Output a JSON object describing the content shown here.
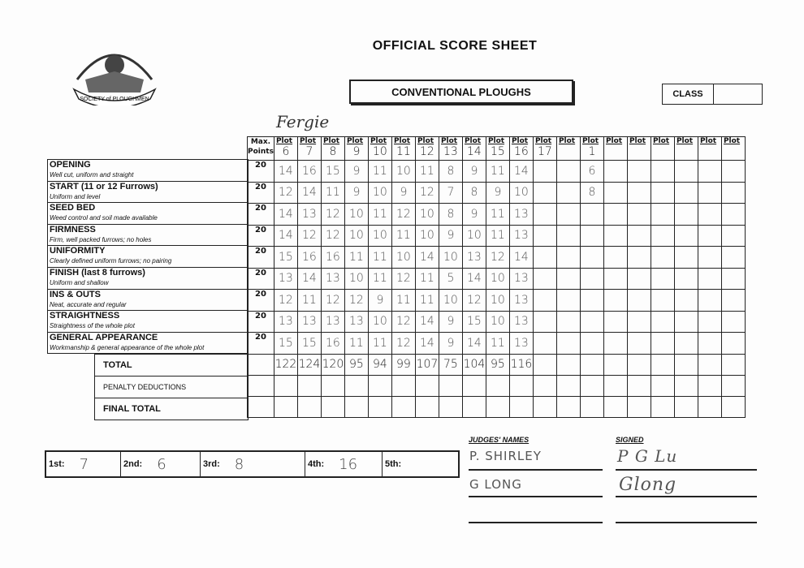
{
  "header": {
    "title": "OFFICIAL SCORE SHEET",
    "category": "CONVENTIONAL PLOUGHS",
    "class_label": "CLASS",
    "class_value": "",
    "logo_text": "SOCIETY of PLOUGHMEN"
  },
  "annotation": "Fergie",
  "grid": {
    "max_header": "Max. Points",
    "plot_label": "Plot",
    "plots": [
      "6",
      "7",
      "8",
      "9",
      "10",
      "11",
      "12",
      "13",
      "14",
      "15",
      "16",
      "17",
      "",
      "1",
      "",
      "",
      "",
      "",
      "",
      ""
    ],
    "criteria": [
      {
        "name": "OPENING",
        "desc": "Well cut, uniform and straight",
        "max": "20",
        "scores": [
          "14",
          "16",
          "15",
          "9",
          "11",
          "10",
          "11",
          "8",
          "9",
          "11",
          "14",
          "",
          "",
          "6"
        ]
      },
      {
        "name": "START (11 or 12 Furrows)",
        "desc": "Uniform and level",
        "max": "20",
        "scores": [
          "12",
          "14",
          "11",
          "9",
          "10",
          "9",
          "12",
          "7",
          "8",
          "9",
          "10",
          "",
          "",
          "8"
        ]
      },
      {
        "name": "SEED BED",
        "desc": "Weed control and soil made available",
        "max": "20",
        "scores": [
          "14",
          "13",
          "12",
          "10",
          "11",
          "12",
          "10",
          "8",
          "9",
          "11",
          "13"
        ]
      },
      {
        "name": "FIRMNESS",
        "desc": "Firm, well packed furrows; no holes",
        "max": "20",
        "scores": [
          "14",
          "12",
          "12",
          "10",
          "10",
          "11",
          "10",
          "9",
          "10",
          "11",
          "13"
        ]
      },
      {
        "name": "UNIFORMITY",
        "desc": "Clearly defined uniform furrows; no pairing",
        "max": "20",
        "scores": [
          "15",
          "16",
          "16",
          "11",
          "11",
          "10",
          "14",
          "10",
          "13",
          "12",
          "14"
        ]
      },
      {
        "name": "FINISH (last 8 furrows)",
        "desc": "Uniform and shallow",
        "max": "20",
        "scores": [
          "13",
          "14",
          "13",
          "10",
          "11",
          "12",
          "11",
          "5",
          "14",
          "10",
          "13"
        ]
      },
      {
        "name": "INS & OUTS",
        "desc": "Neat, accurate and regular",
        "max": "20",
        "scores": [
          "12",
          "11",
          "12",
          "12",
          "9",
          "11",
          "11",
          "10",
          "12",
          "10",
          "13"
        ]
      },
      {
        "name": "STRAIGHTNESS",
        "desc": "Straightness of the whole plot",
        "max": "20",
        "scores": [
          "13",
          "13",
          "13",
          "13",
          "10",
          "12",
          "14",
          "9",
          "15",
          "10",
          "13"
        ]
      },
      {
        "name": "GENERAL APPEARANCE",
        "desc": "Workmanship & general appearance of the whole plot",
        "max": "20",
        "scores": [
          "15",
          "15",
          "16",
          "11",
          "11",
          "12",
          "14",
          "9",
          "14",
          "11",
          "13"
        ]
      }
    ],
    "summary": [
      {
        "label": "TOTAL",
        "values": [
          "122",
          "124",
          "120",
          "95",
          "94",
          "99",
          "107",
          "75",
          "104",
          "95",
          "116"
        ]
      },
      {
        "label": "PENALTY DEDUCTIONS",
        "values": []
      },
      {
        "label": "FINAL TOTAL",
        "values": []
      }
    ]
  },
  "places": [
    {
      "label": "1st:",
      "value": "7"
    },
    {
      "label": "2nd:",
      "value": "6"
    },
    {
      "label": "3rd:",
      "value": "8"
    },
    {
      "label": "4th:",
      "value": "16"
    },
    {
      "label": "5th:",
      "value": ""
    }
  ],
  "judges": {
    "names_header": "JUDGES' NAMES",
    "signed_header": "SIGNED",
    "names": [
      "P. SHIRLEY",
      "G LONG",
      ""
    ],
    "signatures": [
      "P G Lu",
      "Glong",
      ""
    ]
  }
}
